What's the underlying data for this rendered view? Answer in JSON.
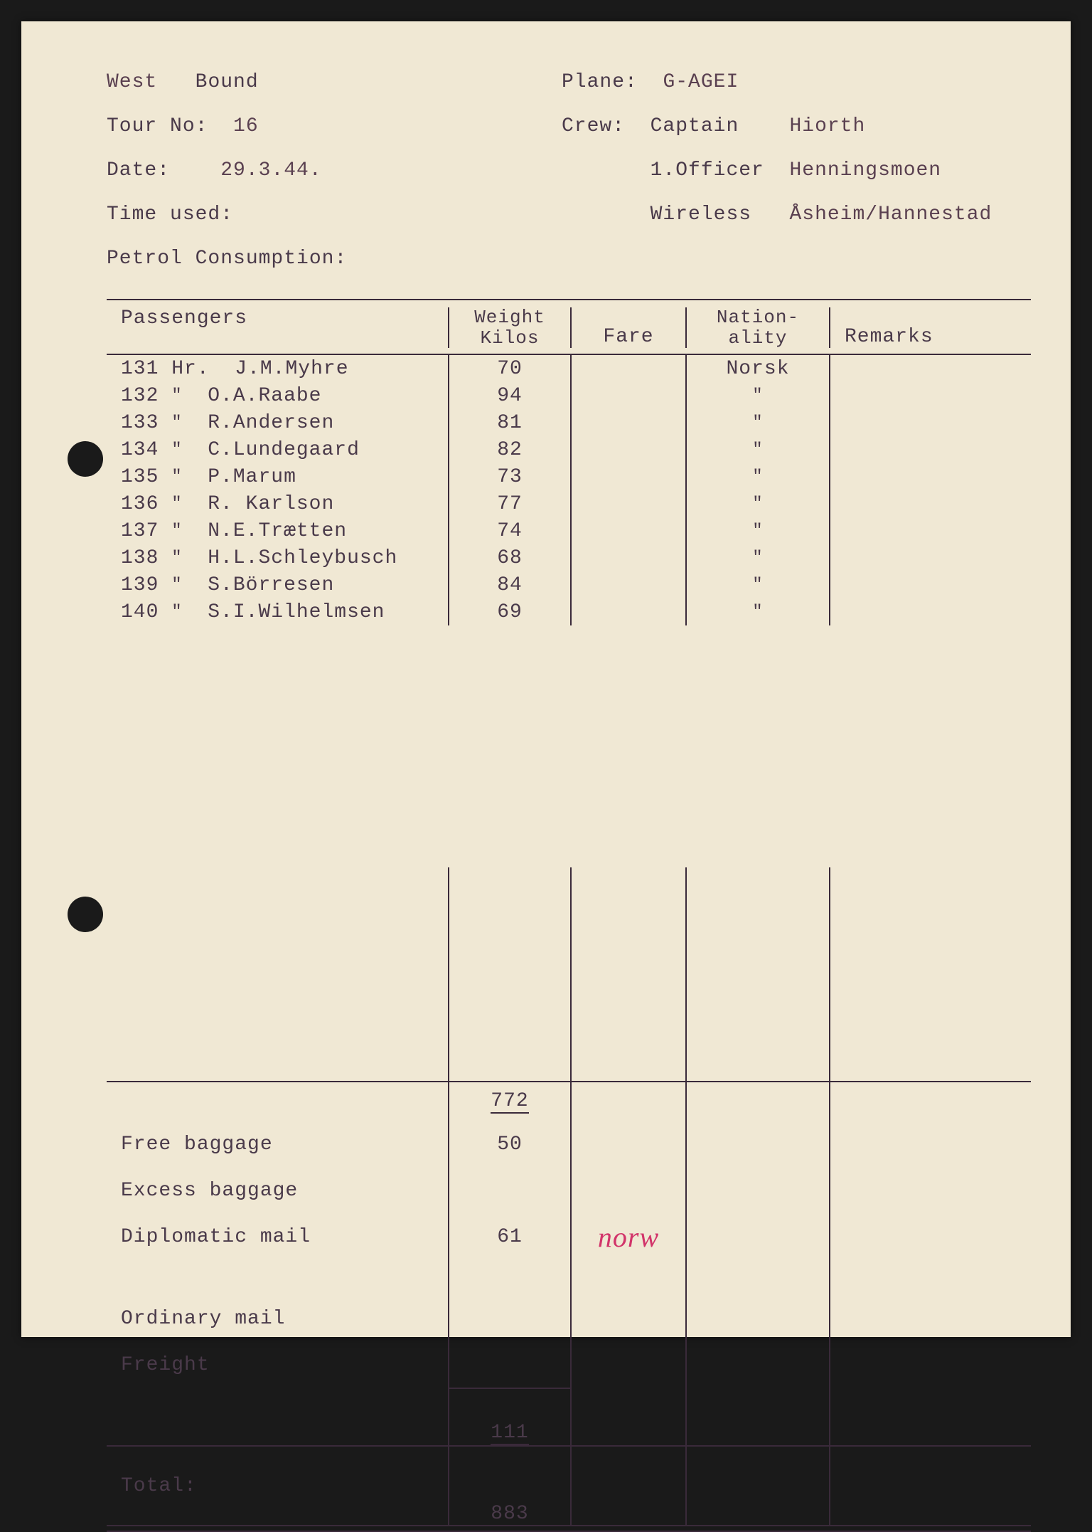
{
  "header": {
    "bound_prefix": "West",
    "bound": "Bound",
    "plane_label": "Plane:",
    "plane": "G-AGEI",
    "tour_label": "Tour No:",
    "tour": "16",
    "crew_label": "Crew:",
    "crew_captain_label": "Captain",
    "crew_captain": "Hiorth",
    "date_label": "Date:",
    "date": "29.3.44.",
    "officer_label": "1.Officer",
    "officer": "Henningsmoen",
    "time_label": "Time used:",
    "wireless_label": "Wireless",
    "wireless": "Åsheim/Hannestad",
    "petrol_label": "Petrol Consumption:"
  },
  "columns": {
    "passengers": "Passengers",
    "weight_l1": "Weight",
    "weight_l2": "Kilos",
    "fare": "Fare",
    "nat_l1": "Nation-",
    "nat_l2": "ality",
    "remarks": "Remarks"
  },
  "passengers": [
    {
      "num": "131",
      "title": "Hr.",
      "name": "J.M.Myhre",
      "weight": "70",
      "nat": "Norsk"
    },
    {
      "num": "132",
      "title": "\"",
      "name": "O.A.Raabe",
      "weight": "94",
      "nat": "\""
    },
    {
      "num": "133",
      "title": "\"",
      "name": "R.Andersen",
      "weight": "81",
      "nat": "\""
    },
    {
      "num": "134",
      "title": "\"",
      "name": "C.Lundegaard",
      "weight": "82",
      "nat": "\""
    },
    {
      "num": "135",
      "title": "\"",
      "name": "P.Marum",
      "weight": "73",
      "nat": "\""
    },
    {
      "num": "136",
      "title": "\"",
      "name": "R. Karlson",
      "weight": "77",
      "nat": "\""
    },
    {
      "num": "137",
      "title": "\"",
      "name": "N.E.Trætten",
      "weight": "74",
      "nat": "\""
    },
    {
      "num": "138",
      "title": "\"",
      "name": "H.L.Schleybusch",
      "weight": "68",
      "nat": "\""
    },
    {
      "num": "139",
      "title": "\"",
      "name": "S.Börresen",
      "weight": "84",
      "nat": "\""
    },
    {
      "num": "140",
      "title": "\"",
      "name": "S.I.Wilhelmsen",
      "weight": "69",
      "nat": "\""
    }
  ],
  "subtotal_weight": "772",
  "summary": {
    "free_baggage_label": "Free baggage",
    "free_baggage": "50",
    "excess_label": "Excess baggage",
    "diplomatic_label": "Diplomatic mail",
    "diplomatic": "61",
    "diplomatic_note": "norw",
    "ordinary_label": "Ordinary mail",
    "freight_label": "Freight",
    "subtotal2": "111",
    "total_label": "Total:",
    "total": "883"
  },
  "colors": {
    "paper": "#f0e8d4",
    "ink": "#4a3a4a",
    "red_ink": "#d2346a",
    "line": "#3a2a3a"
  }
}
